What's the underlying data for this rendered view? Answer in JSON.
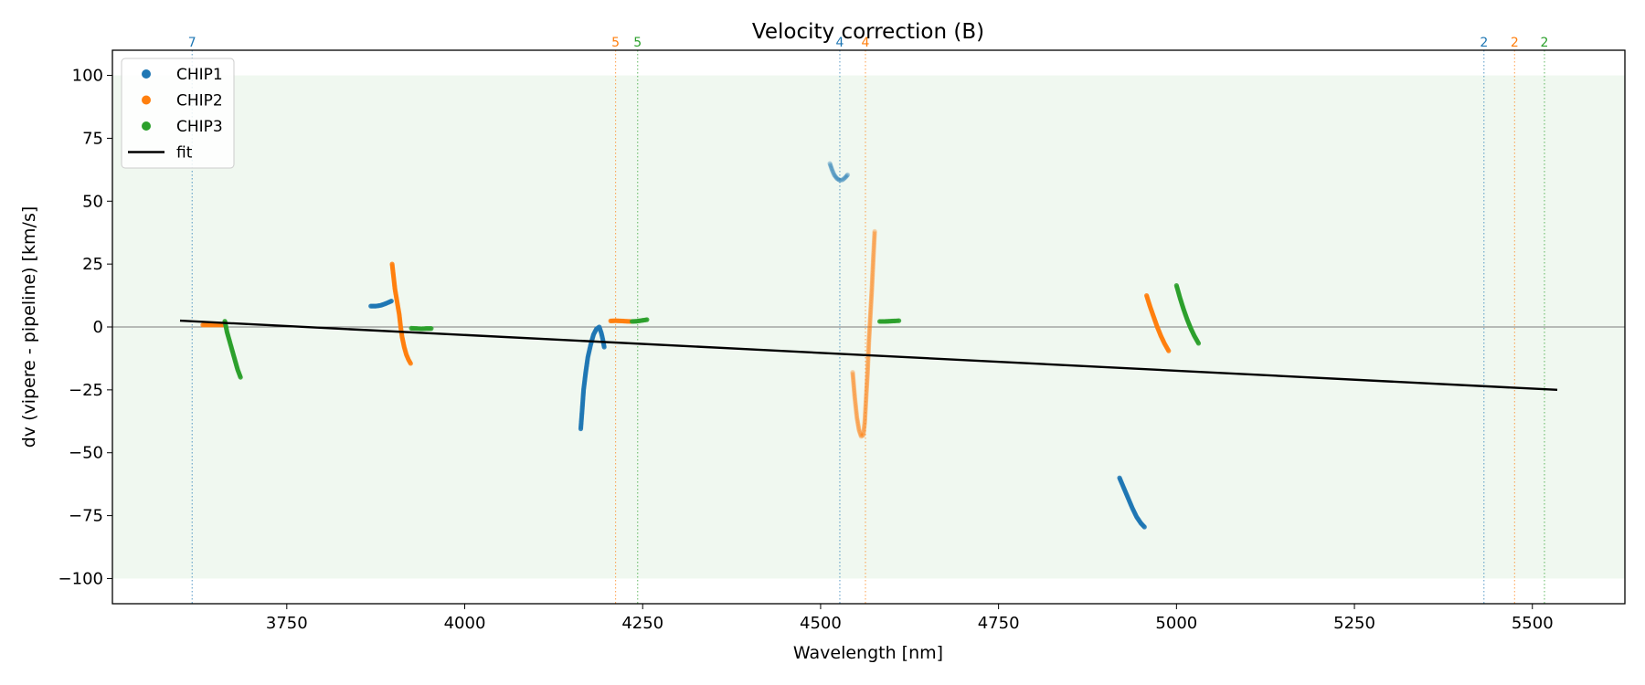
{
  "chart_data": {
    "type": "scatter",
    "title": "Velocity correction (B)",
    "xlabel": "Wavelength [nm]",
    "ylabel": "dv (vipere - pipeline) [km/s]",
    "xlim": [
      3505,
      5630
    ],
    "ylim": [
      -110,
      110
    ],
    "xticks": [
      3750,
      4000,
      4250,
      4500,
      4750,
      5000,
      5250,
      5500
    ],
    "yticks": [
      -100,
      -75,
      -50,
      -25,
      0,
      25,
      50,
      75,
      100
    ],
    "shaded_band": [
      -100,
      100
    ],
    "zero_line": true,
    "grid": false,
    "legend_position": "upper-left",
    "legend": [
      {
        "label": "CHIP1",
        "color": "#1f77b4",
        "kind": "marker"
      },
      {
        "label": "CHIP2",
        "color": "#ff7f0e",
        "kind": "marker"
      },
      {
        "label": "CHIP3",
        "color": "#2ca02c",
        "kind": "marker"
      },
      {
        "label": "fit",
        "color": "#000000",
        "kind": "line"
      }
    ],
    "fit": {
      "name": "fit",
      "x": [
        3600,
        5535
      ],
      "y": [
        2.5,
        -25
      ]
    },
    "order_markers": [
      {
        "label": "7",
        "x": 3617,
        "color": "#1f77b4"
      },
      {
        "label": "5",
        "x": 4212,
        "color": "#ff7f0e"
      },
      {
        "label": "5",
        "x": 4243,
        "color": "#2ca02c"
      },
      {
        "label": "4",
        "x": 4527,
        "color": "#1f77b4"
      },
      {
        "label": "4",
        "x": 4563,
        "color": "#ff7f0e"
      },
      {
        "label": "2",
        "x": 5432,
        "color": "#1f77b4"
      },
      {
        "label": "2",
        "x": 5475,
        "color": "#ff7f0e"
      },
      {
        "label": "2",
        "x": 5517,
        "color": "#2ca02c"
      }
    ],
    "series": [
      {
        "name": "CHIP1",
        "color": "#1f77b4",
        "segments": [
          {
            "alpha": 0.85,
            "points": [
              [
                3868,
                8.3
              ],
              [
                3875,
                8.3
              ],
              [
                3882,
                8.6
              ],
              [
                3888,
                9.2
              ],
              [
                3893,
                9.8
              ],
              [
                3897,
                10.3
              ]
            ]
          },
          {
            "alpha": 0.85,
            "points": [
              [
                4163,
                -40.5
              ],
              [
                4165,
                -33
              ],
              [
                4167,
                -25
              ],
              [
                4170,
                -18
              ],
              [
                4173,
                -12
              ],
              [
                4177,
                -7
              ],
              [
                4181,
                -3
              ],
              [
                4185,
                -0.8
              ],
              [
                4189,
                0
              ],
              [
                4192,
                -2.5
              ],
              [
                4194,
                -5
              ],
              [
                4196,
                -8
              ]
            ]
          },
          {
            "alpha": 0.3,
            "points": [
              [
                4513,
                65
              ],
              [
                4516,
                62.5
              ],
              [
                4519,
                60.5
              ],
              [
                4523,
                59
              ],
              [
                4527,
                58.3
              ],
              [
                4531,
                58.5
              ],
              [
                4535,
                59.5
              ],
              [
                4538,
                60.5
              ]
            ]
          },
          {
            "alpha": 0.85,
            "points": [
              [
                4920,
                -60
              ],
              [
                4926,
                -64
              ],
              [
                4932,
                -68
              ],
              [
                4938,
                -72
              ],
              [
                4944,
                -75.5
              ],
              [
                4950,
                -78
              ],
              [
                4955,
                -79.5
              ]
            ]
          }
        ]
      },
      {
        "name": "CHIP2",
        "color": "#ff7f0e",
        "segments": [
          {
            "alpha": 0.85,
            "points": [
              [
                3632,
                0.8
              ],
              [
                3642,
                0.8
              ],
              [
                3652,
                0.8
              ],
              [
                3662,
                0.8
              ]
            ]
          },
          {
            "alpha": 0.85,
            "points": [
              [
                3898,
                25
              ],
              [
                3900,
                20
              ],
              [
                3902,
                15
              ],
              [
                3905,
                10
              ],
              [
                3908,
                5
              ],
              [
                3910,
                0
              ],
              [
                3912,
                -4
              ],
              [
                3915,
                -8
              ],
              [
                3918,
                -11
              ],
              [
                3921,
                -13
              ],
              [
                3924,
                -14.5
              ]
            ]
          },
          {
            "alpha": 0.85,
            "points": [
              [
                4205,
                2.4
              ],
              [
                4212,
                2.5
              ],
              [
                4219,
                2.4
              ],
              [
                4226,
                2.3
              ],
              [
                4233,
                2.2
              ]
            ]
          },
          {
            "alpha": 0.3,
            "points": [
              [
                4545,
                -18
              ],
              [
                4548,
                -28
              ],
              [
                4551,
                -36
              ],
              [
                4554,
                -41
              ],
              [
                4557,
                -43.5
              ],
              [
                4560,
                -43
              ],
              [
                4562,
                -38
              ],
              [
                4564,
                -28
              ],
              [
                4566,
                -18
              ],
              [
                4568,
                -5
              ],
              [
                4570,
                5
              ],
              [
                4572,
                15
              ],
              [
                4574,
                27
              ],
              [
                4576,
                38
              ]
            ]
          },
          {
            "alpha": 0.85,
            "points": [
              [
                4958,
                12.5
              ],
              [
                4963,
                8
              ],
              [
                4968,
                4
              ],
              [
                4973,
                0
              ],
              [
                4978,
                -3.5
              ],
              [
                4983,
                -6.5
              ],
              [
                4989,
                -9.5
              ]
            ]
          }
        ]
      },
      {
        "name": "CHIP3",
        "color": "#2ca02c",
        "segments": [
          {
            "alpha": 0.85,
            "points": [
              [
                3663,
                2.3
              ],
              [
                3666,
                -2
              ],
              [
                3669,
                -5
              ],
              [
                3672,
                -8
              ],
              [
                3675,
                -11
              ],
              [
                3678,
                -14
              ],
              [
                3681,
                -17
              ],
              [
                3685,
                -20
              ]
            ]
          },
          {
            "alpha": 0.85,
            "points": [
              [
                3925,
                -0.5
              ],
              [
                3932,
                -0.6
              ],
              [
                3939,
                -0.7
              ],
              [
                3946,
                -0.6
              ],
              [
                3953,
                -0.6
              ]
            ]
          },
          {
            "alpha": 0.85,
            "points": [
              [
                4235,
                2.2
              ],
              [
                4242,
                2.3
              ],
              [
                4249,
                2.6
              ],
              [
                4256,
                2.9
              ]
            ]
          },
          {
            "alpha": 0.85,
            "points": [
              [
                4583,
                2.2
              ],
              [
                4590,
                2.2
              ],
              [
                4597,
                2.3
              ],
              [
                4604,
                2.4
              ],
              [
                4610,
                2.5
              ]
            ]
          },
          {
            "alpha": 0.85,
            "points": [
              [
                5000,
                16.5
              ],
              [
                5005,
                11.5
              ],
              [
                5010,
                7
              ],
              [
                5015,
                3
              ],
              [
                5020,
                -0.5
              ],
              [
                5025,
                -3.5
              ],
              [
                5031,
                -6.5
              ]
            ]
          }
        ]
      }
    ]
  }
}
